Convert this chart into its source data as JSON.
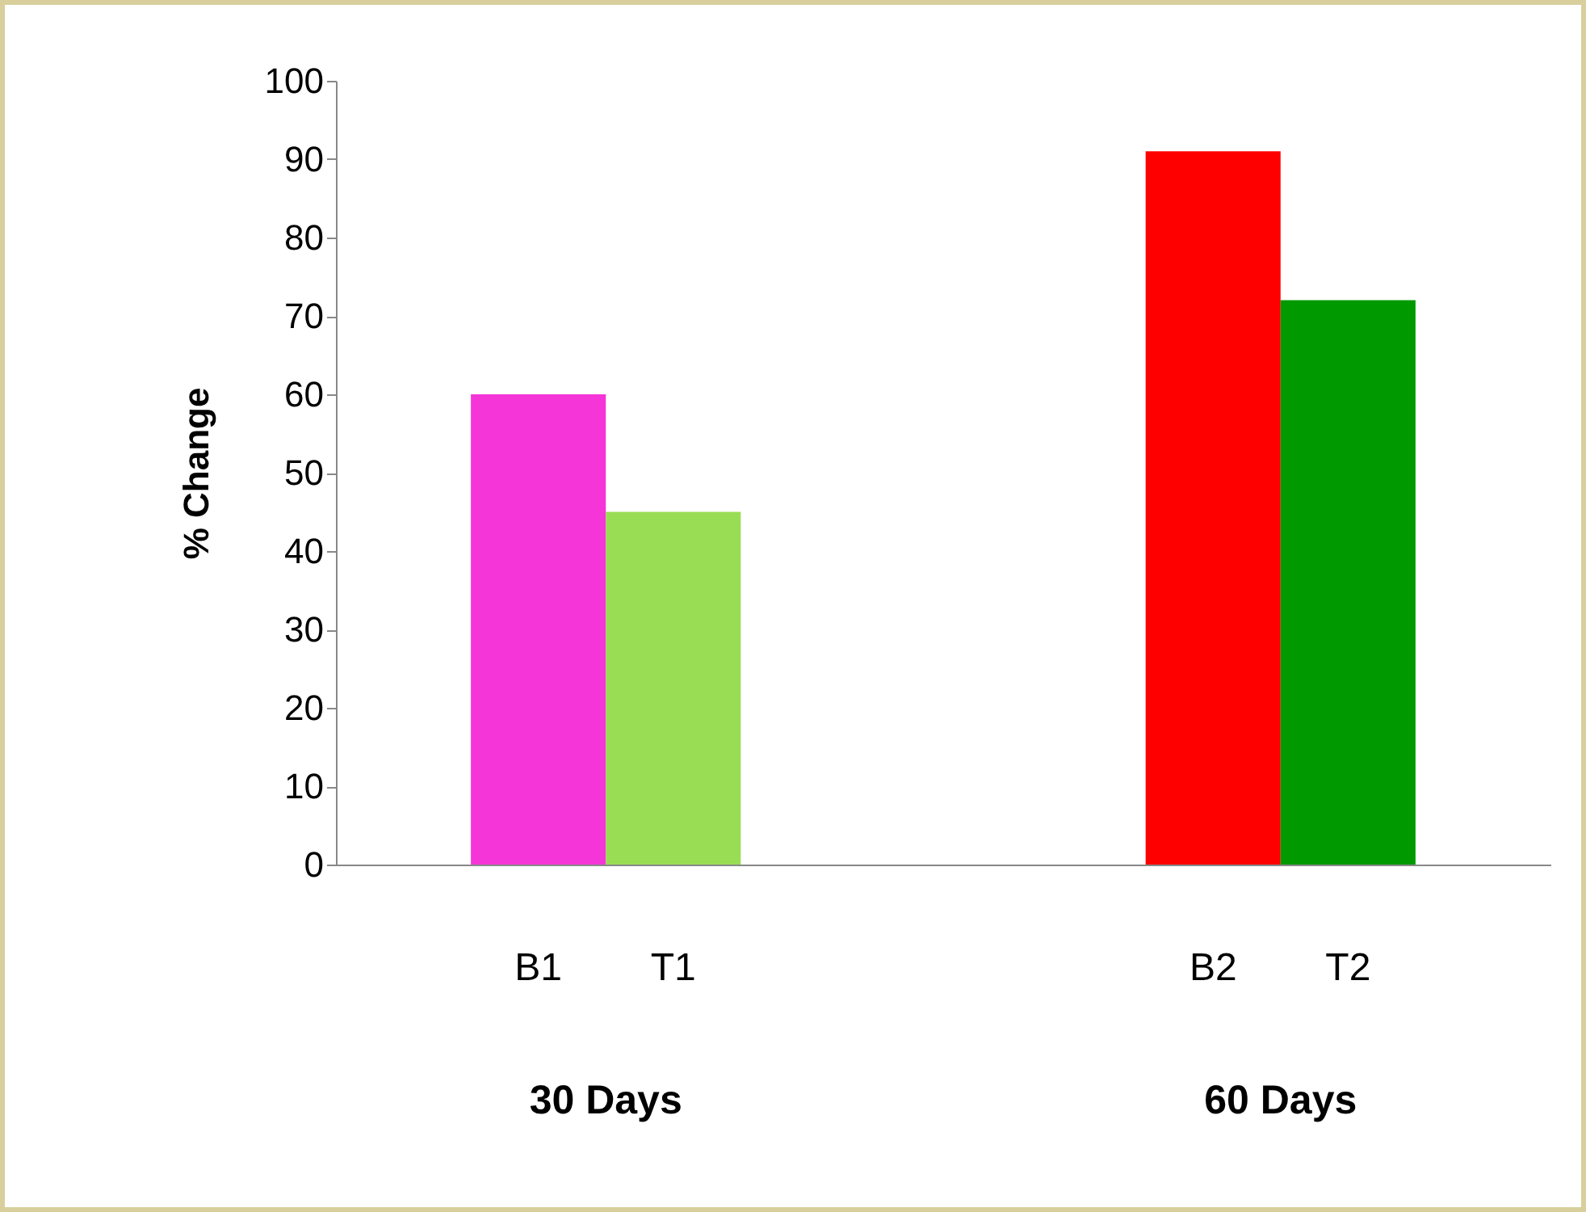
{
  "chart_data": {
    "type": "bar",
    "ylabel": "% Change",
    "categories": [
      "B1",
      "T1",
      null,
      null,
      null,
      "B2",
      "T2"
    ],
    "values": [
      60,
      45,
      null,
      null,
      null,
      91,
      72
    ],
    "colors": [
      "#f535d8",
      "#99dd55",
      null,
      null,
      null,
      "#ff0000",
      "#009900"
    ],
    "ylim": [
      0,
      100
    ],
    "yticks": [
      0,
      10,
      20,
      30,
      40,
      50,
      60,
      70,
      80,
      90,
      100
    ],
    "grid": false,
    "legend": false,
    "annotations": [
      "30 Days",
      "60 Days"
    ]
  }
}
